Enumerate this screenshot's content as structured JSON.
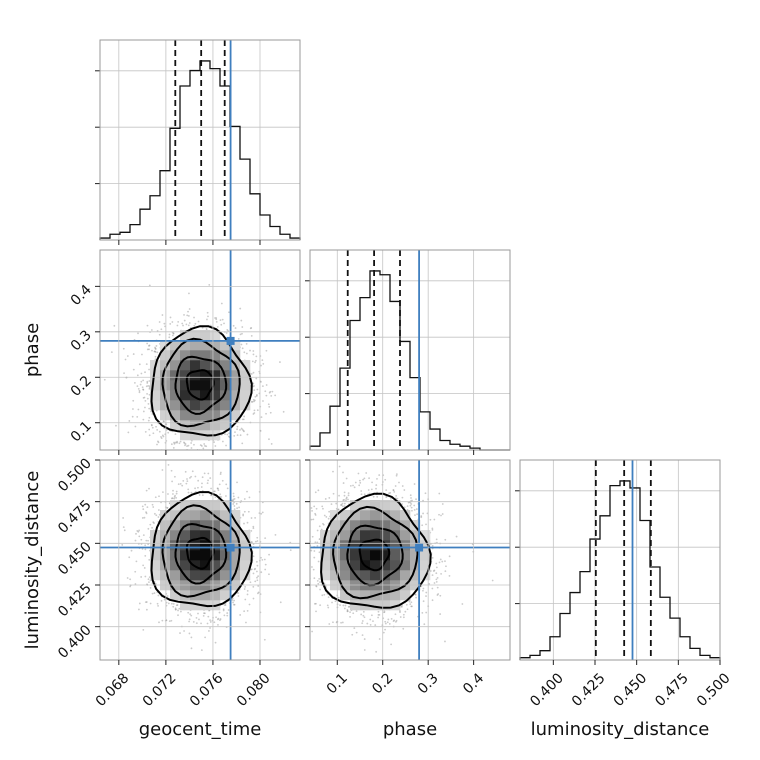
{
  "colors": {
    "truth": "#3f7fbf",
    "hist": "#111111",
    "grid": "#c4c4c4",
    "frame": "#9a9a9a"
  },
  "chart_data": {
    "type": "corner",
    "title": "",
    "parameters": [
      {
        "key": "geocent_time",
        "label": "geocent_time",
        "range": [
          0.0664,
          0.0834
        ],
        "ticks": [
          0.068,
          0.072,
          0.076,
          0.08
        ],
        "tick_labels": [
          "0.068",
          "0.072",
          "0.076",
          "0.080"
        ],
        "truth": 0.0775,
        "quantiles": [
          0.0728,
          0.075,
          0.077
        ],
        "hist": {
          "edges_start": 0.0664,
          "bin_width": 0.00085,
          "counts": [
            1,
            3,
            4,
            8,
            16,
            23,
            36,
            58,
            80,
            88,
            93,
            89,
            80,
            59,
            42,
            24,
            13,
            7,
            3,
            1
          ]
        }
      },
      {
        "key": "phase",
        "label": "phase",
        "range": [
          0.04,
          0.48
        ],
        "ticks": [
          0.1,
          0.2,
          0.3,
          0.4
        ],
        "tick_labels": [
          "0.1",
          "0.2",
          "0.3",
          "0.4"
        ],
        "truth": 0.28,
        "quantiles": [
          0.123,
          0.181,
          0.238
        ],
        "hist": {
          "edges_start": 0.04,
          "bin_width": 0.022,
          "counts": [
            2,
            9,
            23,
            43,
            68,
            80,
            94,
            92,
            78,
            57,
            38,
            20,
            11,
            5,
            3,
            2,
            1,
            0,
            0,
            0
          ]
        }
      },
      {
        "key": "luminosity_distance",
        "label": "luminosity_distance",
        "range": [
          0.38,
          0.5
        ],
        "ticks": [
          0.4,
          0.425,
          0.45,
          0.475,
          0.5
        ],
        "tick_labels": [
          "0.400",
          "0.425",
          "0.450",
          "0.475",
          "0.500"
        ],
        "truth": 0.4475,
        "quantiles": [
          0.4255,
          0.4425,
          0.4585
        ],
        "hist": {
          "edges_start": 0.38,
          "bin_width": 0.006,
          "counts": [
            1,
            2,
            4,
            10,
            20,
            29,
            38,
            52,
            62,
            75,
            77,
            74,
            60,
            40,
            27,
            18,
            10,
            5,
            2,
            1
          ]
        }
      }
    ],
    "pair_density": [
      {
        "x": "geocent_time",
        "y": "phase",
        "mean": [
          0.0749,
          0.185
        ],
        "sd": [
          0.00205,
          0.058
        ]
      },
      {
        "x": "geocent_time",
        "y": "luminosity_distance",
        "mean": [
          0.0749,
          0.4445
        ],
        "sd": [
          0.00205,
          0.0165
        ]
      },
      {
        "x": "phase",
        "y": "luminosity_distance",
        "mean": [
          0.181,
          0.4435
        ],
        "sd": [
          0.058,
          0.0165
        ]
      }
    ],
    "grid": true,
    "legend": "none"
  }
}
